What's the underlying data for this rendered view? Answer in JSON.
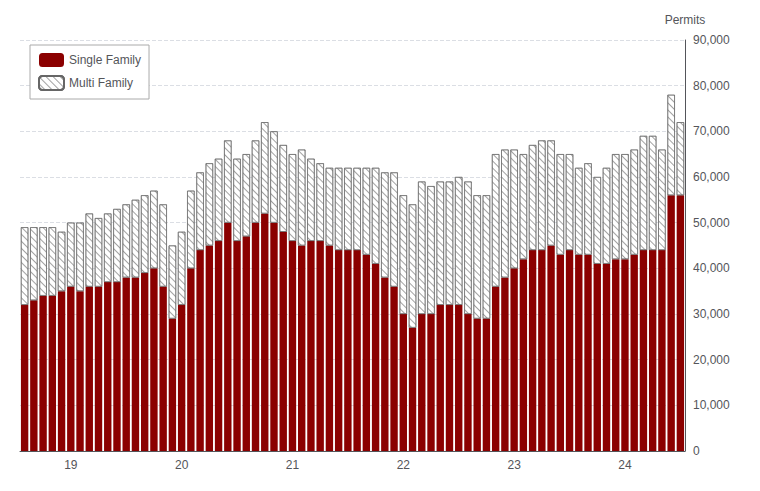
{
  "chart_data": {
    "type": "bar",
    "stacked": true,
    "ylabel": "Permits",
    "categories": [
      null,
      null,
      null,
      null,
      null,
      "19",
      null,
      null,
      null,
      null,
      null,
      null,
      null,
      null,
      null,
      null,
      null,
      "20",
      null,
      null,
      null,
      null,
      null,
      null,
      null,
      null,
      null,
      null,
      null,
      "21",
      null,
      null,
      null,
      null,
      null,
      null,
      null,
      null,
      null,
      null,
      null,
      "22",
      null,
      null,
      null,
      null,
      null,
      null,
      null,
      null,
      null,
      null,
      null,
      "23",
      null,
      null,
      null,
      null,
      null,
      null,
      null,
      null,
      null,
      null,
      null,
      "24",
      null,
      null,
      null,
      null,
      null,
      null
    ],
    "series": [
      {
        "name": "Single Family",
        "color": "#8B0000",
        "values": [
          32000,
          33000,
          34000,
          34000,
          35000,
          36000,
          35000,
          36000,
          36000,
          37000,
          37000,
          38000,
          38000,
          39000,
          40000,
          36000,
          29000,
          32000,
          40000,
          44000,
          45000,
          46000,
          50000,
          46000,
          47000,
          50000,
          52000,
          50000,
          48000,
          46000,
          45000,
          46000,
          46000,
          45000,
          44000,
          44000,
          44000,
          43000,
          41000,
          38000,
          36000,
          30000,
          27000,
          30000,
          30000,
          32000,
          32000,
          32000,
          30000,
          29000,
          29000,
          36000,
          38000,
          40000,
          42000,
          44000,
          44000,
          45000,
          43000,
          44000,
          43000,
          43000,
          41000,
          41000,
          42000,
          42000,
          43000,
          44000,
          44000,
          44000,
          56000,
          56000
        ]
      },
      {
        "name": "Multi Family",
        "color": "#FFFFFF",
        "values": [
          17000,
          16000,
          15000,
          15000,
          13000,
          14000,
          15000,
          16000,
          15000,
          15000,
          16000,
          16000,
          17000,
          17000,
          17000,
          18000,
          16000,
          16000,
          17000,
          17000,
          18000,
          18000,
          18000,
          18000,
          18000,
          18000,
          20000,
          20000,
          19000,
          19000,
          21000,
          18000,
          17000,
          17000,
          18000,
          18000,
          18000,
          19000,
          21000,
          23000,
          25000,
          26000,
          27000,
          29000,
          28000,
          27000,
          27000,
          28000,
          29000,
          27000,
          27000,
          29000,
          28000,
          26000,
          23000,
          23000,
          24000,
          23000,
          22000,
          21000,
          19000,
          20000,
          19000,
          21000,
          23000,
          23000,
          23000,
          25000,
          25000,
          22000,
          22000,
          16000
        ]
      }
    ],
    "ylim": [
      0,
      90000
    ],
    "yticks": [
      0,
      {
        "value": 10000,
        "label": "10,000"
      },
      {
        "value": 20000,
        "label": "20,000"
      },
      {
        "value": 30000,
        "label": "30,000"
      },
      {
        "value": 40000,
        "label": "40,000"
      },
      {
        "value": 50000,
        "label": "50,000"
      },
      {
        "value": 60000,
        "label": "60,000"
      },
      {
        "value": 70000,
        "label": "70,000"
      },
      {
        "value": 80000,
        "label": "80,000"
      },
      {
        "value": 90000,
        "label": "90,000"
      }
    ],
    "grid": true,
    "legend": "upper left"
  }
}
